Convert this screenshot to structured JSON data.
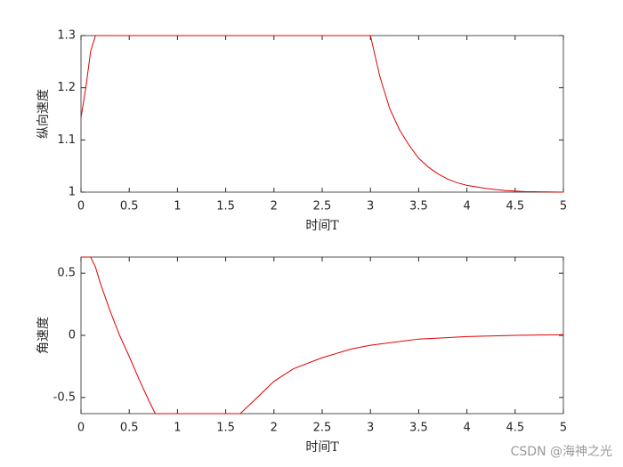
{
  "chart_data": [
    {
      "type": "line",
      "xlabel": "时间T",
      "ylabel": "纵向速度",
      "color": "#e00000",
      "x": [
        0,
        0.05,
        0.1,
        0.15,
        3.0,
        3.1,
        3.2,
        3.3,
        3.4,
        3.5,
        3.6,
        3.7,
        3.8,
        3.9,
        4.0,
        4.2,
        4.4,
        4.6,
        5.0
      ],
      "values": [
        1.143,
        1.2,
        1.27,
        1.3,
        1.3,
        1.22,
        1.16,
        1.12,
        1.09,
        1.065,
        1.048,
        1.035,
        1.025,
        1.018,
        1.013,
        1.007,
        1.003,
        1.001,
        1.0
      ],
      "xlim": [
        0,
        5
      ],
      "ylim": [
        1,
        1.3
      ],
      "xticks": [
        0,
        0.5,
        1,
        1.5,
        2,
        2.5,
        3,
        3.5,
        4,
        4.5,
        5
      ],
      "yticks": [
        1,
        1.1,
        1.2,
        1.3
      ]
    },
    {
      "type": "line",
      "xlabel": "时间T",
      "ylabel": "角速度",
      "color": "#e00000",
      "x": [
        0,
        0.1,
        0.15,
        0.2,
        0.3,
        0.4,
        0.5,
        0.6,
        0.7,
        0.77,
        1.65,
        1.8,
        2.0,
        2.2,
        2.5,
        2.8,
        3.0,
        3.5,
        4.0,
        4.5,
        5.0
      ],
      "values": [
        0.63,
        0.63,
        0.55,
        0.42,
        0.2,
        0.0,
        -0.17,
        -0.35,
        -0.52,
        -0.63,
        -0.63,
        -0.52,
        -0.37,
        -0.27,
        -0.18,
        -0.11,
        -0.08,
        -0.03,
        -0.01,
        0.0,
        0.005
      ],
      "xlim": [
        0,
        5
      ],
      "ylim": [
        -0.63,
        0.63
      ],
      "xticks": [
        0,
        0.5,
        1,
        1.5,
        2,
        2.5,
        3,
        3.5,
        4,
        4.5,
        5
      ],
      "yticks": [
        -0.5,
        0,
        0.5
      ]
    }
  ],
  "watermark": "CSDN @海神之光"
}
